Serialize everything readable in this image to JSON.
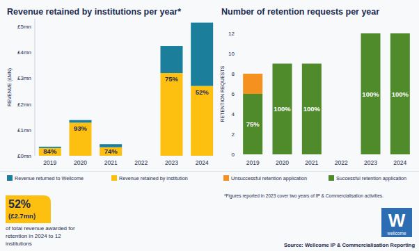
{
  "chart_data": [
    {
      "type": "bar",
      "stacked": true,
      "grid": false,
      "legend": "bottom",
      "title": "Revenue retained by institutions per year*",
      "y_label": "REVENUE (£MN)",
      "categories": [
        "2019",
        "2020",
        "2021",
        "2022",
        "2023",
        "2024"
      ],
      "series": [
        {
          "name": "Revenue retained by institution",
          "color": "#FDC010",
          "values": [
            0.3,
            1.28,
            0.33,
            null,
            3.2,
            2.7
          ],
          "share_labels": [
            "84%",
            "93%",
            "74%",
            null,
            "75%",
            "52%"
          ]
        },
        {
          "name": "Revenue returned to Wellcome",
          "color": "#1B7F9B",
          "values": [
            0.05,
            0.1,
            0.12,
            null,
            1.05,
            2.45
          ]
        }
      ],
      "ylim": [
        0,
        5.3
      ],
      "yticks": [
        {
          "value": 0,
          "label": "£0mn"
        },
        {
          "value": 1,
          "label": "£1mn"
        },
        {
          "value": 2,
          "label": "£2mn"
        },
        {
          "value": 3,
          "label": "£3mn"
        },
        {
          "value": 4,
          "label": "£4mn"
        },
        {
          "value": 5,
          "label": "£5mn"
        }
      ]
    },
    {
      "type": "bar",
      "stacked": true,
      "grid": false,
      "legend": "bottom",
      "title": "Number of retention requests per year",
      "y_label": "RETENTION REQUESTS",
      "categories": [
        "2019",
        "2020",
        "2021",
        "2022",
        "2023",
        "2024"
      ],
      "series": [
        {
          "name": "Successful retention application",
          "color": "#4F8A2B",
          "values": [
            6,
            9,
            9,
            null,
            12,
            12
          ],
          "share_labels": [
            "75%",
            "100%",
            "100%",
            null,
            "100%",
            "100%"
          ]
        },
        {
          "name": "Unsuccessful retention application",
          "color": "#F5921F",
          "values": [
            2,
            0,
            0,
            null,
            0,
            0
          ]
        }
      ],
      "ylim": [
        0,
        12
      ],
      "yticks": [
        0,
        2,
        4,
        6,
        8,
        10,
        12
      ]
    }
  ],
  "footnote": "*Figures reported in 2023 cover two years of IP & Commercialisation activities.",
  "source": "Source: Wellcome IP & Commercialisation Reporting",
  "callout": {
    "value_label": "52%",
    "amount_label": "(£2.7mn)",
    "text_lines": [
      "of total revenue awarded for",
      "retention in 2024 to 12",
      "institutions"
    ]
  },
  "logo": {
    "mark": "W",
    "text": "wellcome"
  }
}
